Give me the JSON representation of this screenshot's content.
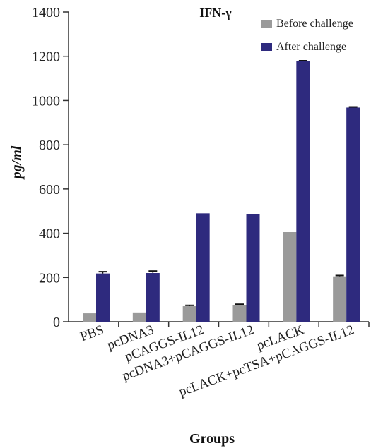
{
  "chart_data": {
    "type": "bar",
    "title": "IFN-γ",
    "ylabel": "pg/ml",
    "xlabel": "Groups",
    "ylim": [
      0,
      1400
    ],
    "yticks": [
      0,
      200,
      400,
      600,
      800,
      1000,
      1200,
      1400
    ],
    "categories": [
      "PBS",
      "pcDNA3",
      "pCAGGS-IL12",
      "pcDNA3+pCAGGS-IL12",
      "pcLACK",
      "pcLACK+pcTSA+pCAGGS-IL12"
    ],
    "series": [
      {
        "name": "Before challenge",
        "color": "#9a9a9a",
        "values": [
          38,
          42,
          70,
          75,
          405,
          205
        ],
        "errors": [
          0,
          0,
          4,
          4,
          0,
          4
        ]
      },
      {
        "name": "After challenge",
        "color": "#2e2a7e",
        "values": [
          218,
          220,
          490,
          487,
          1177,
          968
        ],
        "errors": [
          8,
          9,
          0,
          0,
          3,
          3
        ]
      }
    ],
    "legend_position": "top-right",
    "grid": false
  }
}
